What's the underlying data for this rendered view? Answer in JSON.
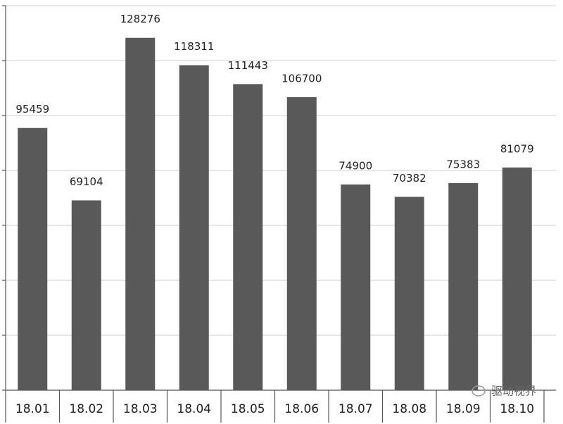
{
  "chart_data": {
    "type": "bar",
    "categories": [
      "18.01",
      "18.02",
      "18.03",
      "18.04",
      "18.05",
      "18.06",
      "18.07",
      "18.08",
      "18.09",
      "18.10"
    ],
    "values": [
      95459,
      69104,
      128276,
      118311,
      111443,
      106700,
      74900,
      70382,
      75383,
      81079
    ],
    "color": "#595959",
    "ylim": [
      0,
      140000
    ],
    "yticks": [
      0,
      20000,
      40000,
      60000,
      80000,
      100000,
      120000,
      140000
    ],
    "grid": true,
    "watermark": "驱动视界"
  }
}
